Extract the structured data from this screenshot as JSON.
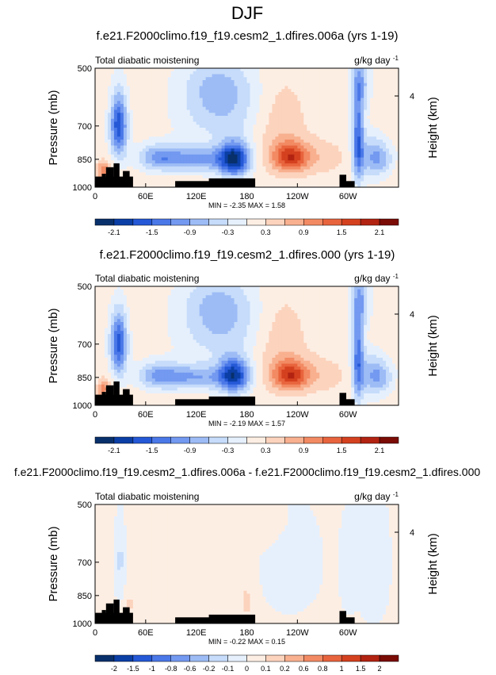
{
  "figure": {
    "title": "DJF"
  },
  "colors": {
    "levels": [
      "#08306b",
      "#0b3fa6",
      "#2458d6",
      "#4a78e8",
      "#7399f0",
      "#9dbcf6",
      "#c6dcfa",
      "#e6f0fd",
      "#fdeee3",
      "#fcd3bd",
      "#f8b08f",
      "#f28a63",
      "#e8643d",
      "#d4411f",
      "#b22311",
      "#7a0b05"
    ],
    "land": "#000000"
  },
  "chart_data": [
    {
      "type": "heatmap",
      "title": "f.e21.F2000climo.f19_f19.cesm2_1.dfires.006a (yrs 1-19)",
      "left_label": "Total diabatic moistening",
      "units": "g/kg day",
      "units_exp": "-1",
      "ylabel": "Pressure (mb)",
      "ylabel_right": "Height (km)",
      "right_ticks": [
        "4"
      ],
      "yticks": [
        "500",
        "700",
        "850",
        "1000"
      ],
      "xticks": [
        "0",
        "60E",
        "120E",
        "180",
        "120W",
        "60W"
      ],
      "minmax": "MIN = -2.35  MAX = 1.58",
      "colorbar_labels": [
        "-2.1",
        "-1.5",
        "-0.9",
        "-0.3",
        "0.3",
        "0.9",
        "1.5",
        "2.1"
      ],
      "features": [
        {
          "lon": 28,
          "p": 700,
          "a": -1.9,
          "slon": 7,
          "sp": 90
        },
        {
          "lon": 10,
          "p": 910,
          "a": 1.0,
          "slon": 6,
          "sp": 35
        },
        {
          "lon": 165,
          "p": 850,
          "a": -2.2,
          "slon": 13,
          "sp": 60
        },
        {
          "lon": 120,
          "p": 850,
          "a": -1.1,
          "slon": 28,
          "sp": 45
        },
        {
          "lon": 75,
          "p": 840,
          "a": -1.0,
          "slon": 18,
          "sp": 45
        },
        {
          "lon": 150,
          "p": 640,
          "a": -0.7,
          "slon": 35,
          "sp": 90
        },
        {
          "lon": 145,
          "p": 540,
          "a": -0.5,
          "slon": 30,
          "sp": 60
        },
        {
          "lon": 232,
          "p": 840,
          "a": 1.5,
          "slon": 15,
          "sp": 50
        },
        {
          "lon": 218,
          "p": 700,
          "a": 0.4,
          "slon": 22,
          "sp": 130
        },
        {
          "lon": 312,
          "p": 760,
          "a": -1.6,
          "slon": 5,
          "sp": 150
        },
        {
          "lon": 330,
          "p": 840,
          "a": -1.0,
          "slon": 11,
          "sp": 70
        },
        {
          "lon": 315,
          "p": 540,
          "a": -0.8,
          "slon": 8,
          "sp": 60
        },
        {
          "lon": 270,
          "p": 840,
          "a": 0.3,
          "slon": 20,
          "sp": 60
        },
        {
          "lon": 345,
          "p": 850,
          "a": -0.4,
          "slon": 10,
          "sp": 50
        }
      ],
      "land": [
        [
          0,
          45,
          940
        ],
        [
          8,
          5,
          925
        ],
        [
          13,
          9,
          890
        ],
        [
          22,
          7,
          870
        ],
        [
          33,
          8,
          910
        ],
        [
          95,
          80,
          965
        ],
        [
          135,
          55,
          950
        ],
        [
          290,
          8,
          930
        ],
        [
          298,
          10,
          965
        ]
      ]
    },
    {
      "type": "heatmap",
      "title": "f.e21.F2000climo.f19_f19.cesm2_1.dfires.000 (yrs 1-19)",
      "left_label": "Total diabatic moistening",
      "units": "g/kg day",
      "units_exp": "-1",
      "ylabel": "Pressure (mb)",
      "ylabel_right": "Height (km)",
      "right_ticks": [
        "4"
      ],
      "yticks": [
        "500",
        "700",
        "850",
        "1000"
      ],
      "xticks": [
        "0",
        "60E",
        "120E",
        "180",
        "120W",
        "60W"
      ],
      "minmax": "MIN = -2.19  MAX = 1.57",
      "colorbar_labels": [
        "-2.1",
        "-1.5",
        "-0.9",
        "-0.3",
        "0.3",
        "0.9",
        "1.5",
        "2.1"
      ],
      "features": [
        {
          "lon": 28,
          "p": 700,
          "a": -1.8,
          "slon": 7,
          "sp": 90
        },
        {
          "lon": 10,
          "p": 910,
          "a": 0.9,
          "slon": 6,
          "sp": 35
        },
        {
          "lon": 165,
          "p": 840,
          "a": -2.0,
          "slon": 13,
          "sp": 60
        },
        {
          "lon": 120,
          "p": 850,
          "a": -1.0,
          "slon": 28,
          "sp": 45
        },
        {
          "lon": 75,
          "p": 840,
          "a": -1.0,
          "slon": 18,
          "sp": 45
        },
        {
          "lon": 150,
          "p": 640,
          "a": -0.7,
          "slon": 35,
          "sp": 90
        },
        {
          "lon": 145,
          "p": 540,
          "a": -0.5,
          "slon": 30,
          "sp": 60
        },
        {
          "lon": 232,
          "p": 840,
          "a": 1.5,
          "slon": 15,
          "sp": 50
        },
        {
          "lon": 218,
          "p": 700,
          "a": 0.4,
          "slon": 22,
          "sp": 130
        },
        {
          "lon": 312,
          "p": 760,
          "a": -1.5,
          "slon": 5,
          "sp": 150
        },
        {
          "lon": 330,
          "p": 840,
          "a": -1.0,
          "slon": 11,
          "sp": 70
        },
        {
          "lon": 315,
          "p": 540,
          "a": -0.8,
          "slon": 8,
          "sp": 60
        },
        {
          "lon": 270,
          "p": 840,
          "a": 0.3,
          "slon": 20,
          "sp": 60
        },
        {
          "lon": 345,
          "p": 850,
          "a": -0.4,
          "slon": 10,
          "sp": 50
        }
      ],
      "land": [
        [
          0,
          45,
          940
        ],
        [
          8,
          5,
          925
        ],
        [
          13,
          9,
          890
        ],
        [
          22,
          7,
          870
        ],
        [
          33,
          8,
          910
        ],
        [
          95,
          80,
          965
        ],
        [
          135,
          55,
          950
        ],
        [
          290,
          8,
          930
        ],
        [
          298,
          10,
          965
        ]
      ]
    },
    {
      "type": "heatmap",
      "title": "f.e21.F2000climo.f19_f19.cesm2_1.dfires.006a - f.e21.F2000climo.f19_f19.cesm2_1.dfires.000",
      "left_label": "Total diabatic moistening",
      "units": "g/kg day",
      "units_exp": "-1",
      "ylabel": "Pressure (mb)",
      "ylabel_right": "Height (km)",
      "right_ticks": [
        "4"
      ],
      "yticks": [
        "500",
        "700",
        "850",
        "1000"
      ],
      "xticks": [
        "0",
        "60E",
        "120E",
        "180",
        "120W",
        "60W"
      ],
      "minmax": "MIN = -0.22  MAX = 0.15",
      "colorbar_labels": [
        "-2",
        "-1.5",
        "-1",
        "-0.8",
        "-0.6",
        "-0.2",
        "-0.1",
        "0",
        "0.1",
        "0.2",
        "0.6",
        "0.8",
        "1",
        "1.5",
        "2"
      ],
      "features": [
        {
          "lon": 30,
          "p": 690,
          "a": -0.15,
          "slon": 4,
          "sp": 120
        },
        {
          "lon": 40,
          "p": 900,
          "a": 0.1,
          "slon": 5,
          "sp": 50
        },
        {
          "lon": 100,
          "p": 650,
          "a": 0.05,
          "slon": 45,
          "sp": 200
        },
        {
          "lon": 180,
          "p": 880,
          "a": 0.12,
          "slon": 6,
          "sp": 60
        },
        {
          "lon": 230,
          "p": 700,
          "a": -0.06,
          "slon": 25,
          "sp": 150
        },
        {
          "lon": 330,
          "p": 700,
          "a": -0.05,
          "slon": 15,
          "sp": 200
        },
        {
          "lon": 300,
          "p": 720,
          "a": -0.08,
          "slon": 6,
          "sp": 120
        },
        {
          "lon": 200,
          "p": 560,
          "a": 0.06,
          "slon": 20,
          "sp": 50
        }
      ],
      "land": [
        [
          0,
          45,
          940
        ],
        [
          8,
          5,
          925
        ],
        [
          13,
          9,
          890
        ],
        [
          22,
          7,
          870
        ],
        [
          33,
          8,
          910
        ],
        [
          95,
          80,
          965
        ],
        [
          135,
          55,
          950
        ],
        [
          290,
          8,
          930
        ],
        [
          298,
          10,
          965
        ]
      ]
    }
  ]
}
